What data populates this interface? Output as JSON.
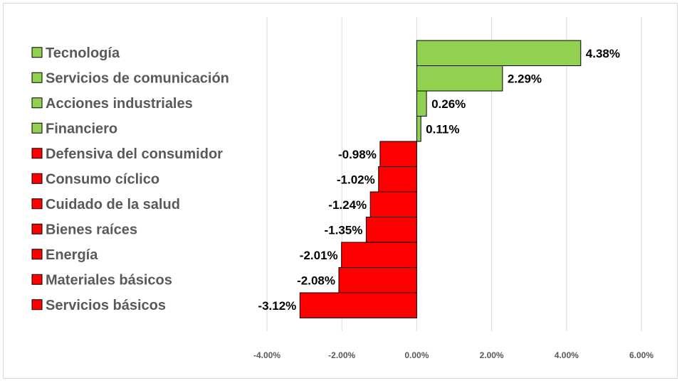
{
  "chart_data": {
    "type": "bar",
    "orientation": "horizontal",
    "title": "",
    "xlabel": "",
    "ylabel": "",
    "categories": [
      "Tecnología",
      "Servicios de comunicación",
      "Acciones industriales",
      "Financiero",
      "Defensiva del consumidor",
      "Consumo cíclico",
      "Cuidado de la salud",
      "Bienes raíces",
      "Energía",
      "Materiales básicos",
      "Servicios básicos"
    ],
    "values": [
      4.38,
      2.29,
      0.26,
      0.11,
      -0.98,
      -1.02,
      -1.24,
      -1.35,
      -2.01,
      -2.08,
      -3.12
    ],
    "value_labels": [
      "4.38%",
      "2.29%",
      "0.26%",
      "0.11%",
      "-0.98%",
      "-1.02%",
      "-1.24%",
      "-1.35%",
      "-2.01%",
      "-2.08%",
      "-3.12%"
    ],
    "xlim": [
      -4,
      6
    ],
    "xticks": [
      -4,
      -2,
      0,
      2,
      4,
      6
    ],
    "xtick_labels": [
      "-4.00%",
      "-2.00%",
      "0.00%",
      "2.00%",
      "4.00%",
      "6.00%"
    ],
    "grid": true,
    "legend_position": "left",
    "colors": {
      "positive": "#92d050",
      "negative": "#ff0000",
      "bar_border": "#000000",
      "grid": "#d9d9d9",
      "label_text": "#595959"
    }
  }
}
